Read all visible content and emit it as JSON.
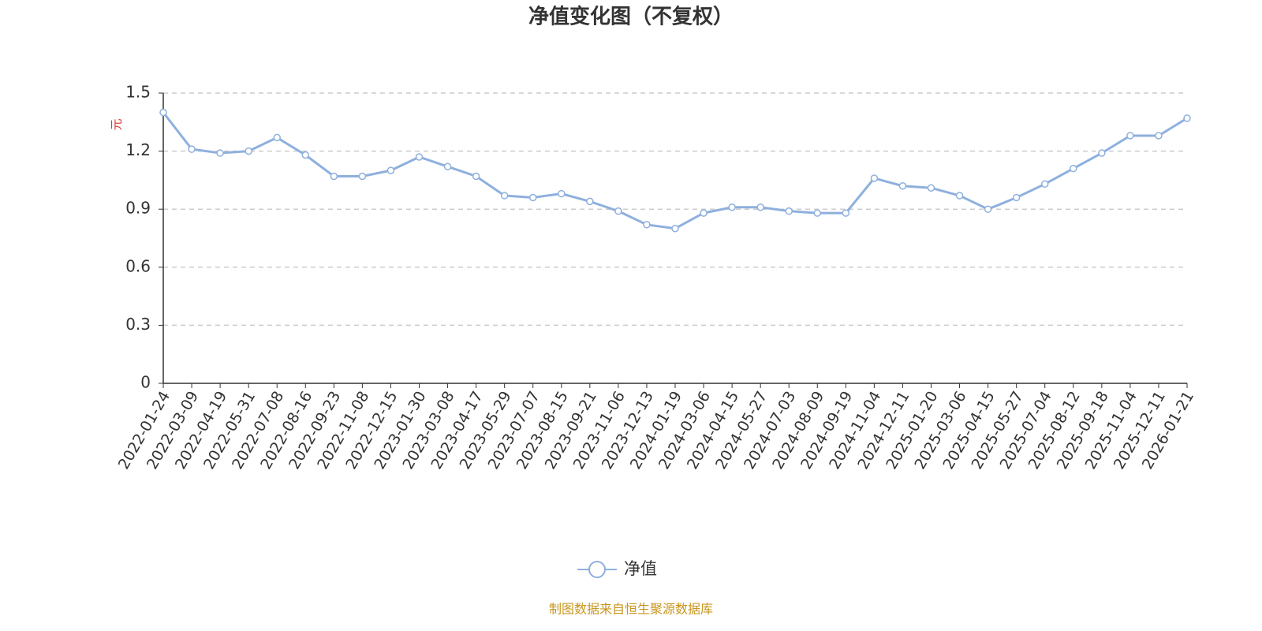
{
  "chart_data": {
    "type": "line",
    "title": "净值变化图（不复权）",
    "y_label": "元",
    "categories": [
      "2022-01-24",
      "2022-03-09",
      "2022-04-19",
      "2022-05-31",
      "2022-07-08",
      "2022-08-16",
      "2022-09-23",
      "2022-11-08",
      "2022-12-15",
      "2023-01-30",
      "2023-03-08",
      "2023-04-17",
      "2023-05-29",
      "2023-07-07",
      "2023-08-15",
      "2023-09-21",
      "2023-11-06",
      "2023-12-13",
      "2024-01-19",
      "2024-03-06",
      "2024-04-15",
      "2024-05-27",
      "2024-07-03",
      "2024-08-09",
      "2024-09-19",
      "2024-11-04",
      "2024-12-11",
      "2025-01-20",
      "2025-03-06",
      "2025-04-15",
      "2025-05-27",
      "2025-07-04",
      "2025-08-12",
      "2025-09-18",
      "2025-11-04",
      "2025-12-11",
      "2026-01-21"
    ],
    "series": [
      {
        "name": "净值",
        "color": "#8eb0de",
        "values": [
          1.4,
          1.21,
          1.19,
          1.2,
          1.27,
          1.18,
          1.07,
          1.07,
          1.1,
          1.17,
          1.12,
          1.07,
          0.97,
          0.96,
          0.98,
          0.94,
          0.89,
          0.82,
          0.8,
          0.88,
          0.91,
          0.91,
          0.89,
          0.88,
          0.88,
          1.06,
          1.02,
          1.01,
          0.97,
          0.9,
          0.96,
          1.03,
          1.11,
          1.19,
          1.28,
          1.28,
          1.37
        ]
      }
    ],
    "ylim": [
      0,
      1.5
    ],
    "yticks": [
      0,
      0.3,
      0.6,
      0.9,
      1.2,
      1.5
    ],
    "grid": true,
    "legend": "bottom",
    "source": "制图数据来自恒生聚源数据库"
  }
}
